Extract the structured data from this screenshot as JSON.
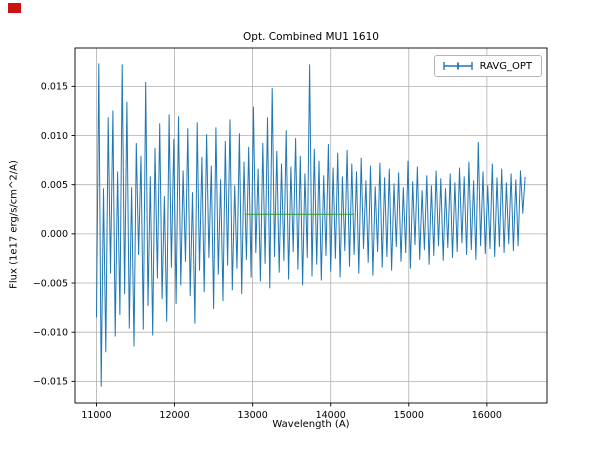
{
  "marker_color": "#cc1111",
  "chart_data": {
    "type": "line",
    "title": "Opt. Combined MU1 1610",
    "xlabel": "Wavelength (A)",
    "ylabel": "Flux (1e17  erg/s/cm^2/A)",
    "grid": true,
    "xlim": [
      10725,
      16770
    ],
    "ylim": [
      -0.0172,
      0.0189
    ],
    "x_ticks": [
      11000,
      12000,
      13000,
      14000,
      15000,
      16000
    ],
    "x_tick_labels": [
      "11000",
      "12000",
      "13000",
      "14000",
      "15000",
      "16000"
    ],
    "y_ticks": [
      -0.015,
      -0.01,
      -0.005,
      0.0,
      0.005,
      0.01,
      0.015
    ],
    "y_tick_labels": [
      "−0.015",
      "−0.010",
      "−0.005",
      "0.000",
      "0.005",
      "0.010",
      "0.015"
    ],
    "grid_color": "#b0b0b0",
    "legend": {
      "position": "upper right",
      "entries": [
        {
          "label": "RAVG_OPT",
          "color": "#1f77b4",
          "marker": "errorbar"
        }
      ]
    },
    "series": [
      {
        "name": "RAVG_OPT",
        "color": "#1f77b4",
        "x_start": 11000,
        "x_step": 30,
        "values": [
          -0.0085,
          0.0173,
          -0.0155,
          0.0046,
          -0.012,
          0.0118,
          -0.004,
          0.0125,
          -0.0104,
          0.0063,
          -0.0082,
          0.0172,
          -0.0061,
          0.0134,
          -0.0096,
          0.0047,
          -0.0114,
          0.0092,
          -0.0021,
          0.0079,
          -0.0097,
          0.0154,
          -0.0073,
          0.0058,
          -0.0103,
          0.0087,
          -0.0045,
          0.0112,
          -0.0066,
          0.0038,
          -0.0089,
          0.0121,
          -0.0034,
          0.0096,
          -0.0071,
          0.0119,
          -0.0052,
          0.0064,
          -0.0028,
          0.0107,
          -0.0063,
          0.0042,
          -0.0091,
          0.0113,
          -0.0037,
          0.0078,
          -0.0059,
          0.0101,
          -0.0024,
          0.0069,
          -0.0076,
          0.0108,
          -0.0041,
          0.0055,
          -0.0068,
          0.0094,
          -0.0032,
          0.0116,
          -0.0057,
          0.0049,
          -0.0035,
          0.0102,
          -0.0061,
          0.0073,
          -0.0026,
          0.0088,
          -0.0044,
          0.0129,
          -0.0019,
          0.0066,
          -0.0048,
          0.0092,
          -0.003,
          0.0118,
          -0.0055,
          0.0148,
          -0.0023,
          0.0084,
          -0.0039,
          0.0071,
          -0.0027,
          0.0105,
          -0.0046,
          0.0068,
          -0.0018,
          0.0097,
          -0.0036,
          0.0079,
          -0.0052,
          0.0061,
          -0.0024,
          0.0172,
          -0.0043,
          0.0086,
          -0.0031,
          0.0074,
          -0.0047,
          0.0059,
          -0.0022,
          0.0091,
          -0.0038,
          0.0067,
          -0.0025,
          0.0082,
          -0.0044,
          0.0058,
          -0.0017,
          0.0085,
          -0.0033,
          0.0071,
          -0.0021,
          0.0063,
          -0.004,
          0.0077,
          -0.0015,
          0.0054,
          -0.0029,
          0.0069,
          -0.0042,
          0.0048,
          -0.0018,
          0.0072,
          -0.0034,
          0.0057,
          -0.0023,
          0.0066,
          -0.0037,
          0.0051,
          -0.0013,
          0.0062,
          -0.0028,
          0.0047,
          -0.0019,
          0.0074,
          -0.0035,
          0.0053,
          -0.0011,
          0.0068,
          -0.0026,
          0.0044,
          -0.0016,
          0.0059,
          -0.0031,
          0.0049,
          -0.0022,
          0.0064,
          -0.0012,
          0.0056,
          -0.0027,
          0.0046,
          -0.0014,
          0.0061,
          -0.0024,
          0.0052,
          -0.0018,
          0.0067,
          -0.0009,
          0.0058,
          -0.0021,
          0.0073,
          -0.0016,
          0.0054,
          -0.0026,
          0.0093,
          -0.0012,
          0.0063,
          -0.002,
          0.0049,
          -0.0015,
          0.0071,
          -0.0023,
          0.0057,
          -0.0013,
          0.0066,
          -0.0019,
          0.0052,
          -0.001,
          0.0061,
          -0.0017,
          0.0055,
          -0.0012,
          0.0064,
          0.0021,
          0.0058
        ]
      },
      {
        "name": "running-average",
        "color": "#2ca02c",
        "x": [
          12900,
          14300
        ],
        "values": [
          0.002,
          0.002
        ]
      }
    ]
  }
}
